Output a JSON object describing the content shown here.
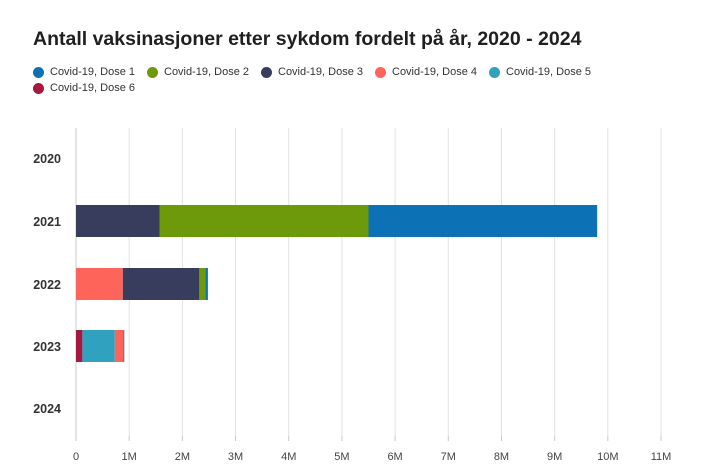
{
  "title": "Antall vaksinasjoner etter sykdom fordelt på år, 2020 - 2024",
  "chart_data": {
    "type": "bar",
    "orientation": "horizontal",
    "stacked": true,
    "title": "Antall vaksinasjoner etter sykdom fordelt på år, 2020 - 2024",
    "xlabel": "",
    "ylabel": "",
    "categories": [
      "2020",
      "2021",
      "2022",
      "2023",
      "2024"
    ],
    "xlim": [
      0,
      11000000
    ],
    "x_ticks": [
      0,
      1000000,
      2000000,
      3000000,
      4000000,
      5000000,
      6000000,
      7000000,
      8000000,
      9000000,
      10000000,
      11000000
    ],
    "x_tick_labels": [
      "0",
      "1M",
      "2M",
      "3M",
      "4M",
      "5M",
      "6M",
      "7M",
      "8M",
      "9M",
      "10M",
      "11M"
    ],
    "grid": true,
    "legend_position": "top-left",
    "series": [
      {
        "name": "Covid-19, Dose 1",
        "color": "#0c72b5",
        "values": [
          0,
          4300000,
          50000,
          2000,
          0
        ]
      },
      {
        "name": "Covid-19, Dose 2",
        "color": "#6d9a0b",
        "values": [
          0,
          3930000,
          110000,
          3000,
          0
        ]
      },
      {
        "name": "Covid-19, Dose 3",
        "color": "#383d5e",
        "values": [
          0,
          1570000,
          1440000,
          5000,
          0
        ]
      },
      {
        "name": "Covid-19, Dose 4",
        "color": "#ff645a",
        "values": [
          0,
          0,
          880000,
          160000,
          0
        ]
      },
      {
        "name": "Covid-19, Dose 5",
        "color": "#31a1c0",
        "values": [
          0,
          0,
          0,
          610000,
          0
        ]
      },
      {
        "name": "Covid-19, Dose 6",
        "color": "#a7173f",
        "values": [
          0,
          0,
          0,
          120000,
          0
        ]
      }
    ],
    "stack_order_from_left": [
      "Covid-19, Dose 6",
      "Covid-19, Dose 5",
      "Covid-19, Dose 4",
      "Covid-19, Dose 3",
      "Covid-19, Dose 2",
      "Covid-19, Dose 1"
    ]
  }
}
